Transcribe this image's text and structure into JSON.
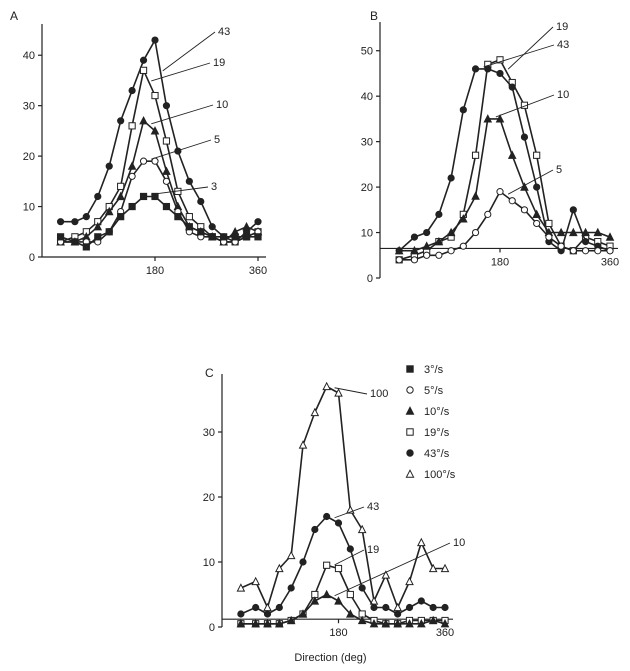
{
  "chart_data": [
    {
      "panel": "A",
      "type": "line",
      "xlim": [
        0,
        360
      ],
      "ylim": [
        0,
        45
      ],
      "xticks": [
        "180",
        "360"
      ],
      "yticks": [
        "0",
        "10",
        "20",
        "30",
        "40"
      ],
      "series": [
        {
          "label": "43",
          "marker": "filled-circle",
          "x": [
            15,
            40,
            60,
            80,
            100,
            120,
            140,
            160,
            180,
            200,
            220,
            240,
            260,
            280,
            300,
            320,
            340,
            360
          ],
          "y": [
            7,
            7,
            8,
            12,
            18,
            27,
            33,
            39,
            43,
            30,
            21,
            15,
            11,
            6,
            4,
            3,
            5,
            7
          ]
        },
        {
          "label": "19",
          "marker": "open-square",
          "x": [
            15,
            40,
            60,
            80,
            100,
            120,
            140,
            160,
            180,
            200,
            220,
            240,
            260,
            280,
            300,
            320,
            340,
            360
          ],
          "y": [
            3,
            4,
            5,
            7,
            10,
            14,
            26,
            37,
            32,
            23,
            13,
            8,
            6,
            4,
            3,
            3,
            4,
            5
          ]
        },
        {
          "label": "10",
          "marker": "filled-triangle",
          "x": [
            15,
            40,
            60,
            80,
            100,
            120,
            140,
            160,
            180,
            200,
            220,
            240,
            260,
            280,
            300,
            320,
            340,
            360
          ],
          "y": [
            3,
            3,
            4,
            6,
            9,
            12,
            18,
            27,
            25,
            17,
            10,
            6,
            5,
            4,
            3,
            5,
            6,
            5
          ]
        },
        {
          "label": "5",
          "marker": "open-circle",
          "x": [
            15,
            40,
            60,
            80,
            100,
            120,
            140,
            160,
            180,
            200,
            220,
            240,
            260,
            280,
            300,
            320,
            340,
            360
          ],
          "y": [
            3,
            3,
            3,
            3,
            5,
            9,
            16,
            19,
            19,
            15,
            9,
            5,
            4,
            4,
            3,
            3,
            4,
            5
          ]
        },
        {
          "label": "3",
          "marker": "filled-square",
          "x": [
            15,
            40,
            60,
            80,
            100,
            120,
            140,
            160,
            180,
            200,
            220,
            240,
            260,
            280,
            300,
            320,
            340,
            360
          ],
          "y": [
            4,
            3,
            2,
            4,
            5,
            8,
            10,
            12,
            12,
            10,
            8,
            6,
            5,
            4,
            4,
            4,
            4,
            4
          ]
        }
      ]
    },
    {
      "panel": "B",
      "type": "line",
      "xlim": [
        0,
        360
      ],
      "ylim": [
        0,
        55
      ],
      "xticks": [
        "180",
        "360"
      ],
      "yticks": [
        "0",
        "10",
        "20",
        "30",
        "40",
        "50"
      ],
      "series": [
        {
          "label": "19",
          "marker": "open-square",
          "x": [
            15,
            40,
            60,
            80,
            100,
            120,
            140,
            160,
            180,
            200,
            220,
            240,
            260,
            280,
            300,
            320,
            340,
            360
          ],
          "y": [
            4,
            5,
            6,
            8,
            9,
            14,
            27,
            47,
            48,
            43,
            38,
            27,
            12,
            7,
            6,
            9,
            8,
            7
          ]
        },
        {
          "label": "43",
          "marker": "filled-circle",
          "x": [
            15,
            40,
            60,
            80,
            100,
            120,
            140,
            160,
            180,
            200,
            220,
            240,
            260,
            280,
            300,
            320,
            340,
            360
          ],
          "y": [
            6,
            9,
            10,
            14,
            22,
            37,
            46,
            46,
            45,
            42,
            31,
            20,
            8,
            6,
            15,
            8,
            7,
            6
          ]
        },
        {
          "label": "10",
          "marker": "filled-triangle",
          "x": [
            15,
            40,
            60,
            80,
            100,
            120,
            140,
            160,
            180,
            200,
            220,
            240,
            260,
            280,
            300,
            320,
            340,
            360
          ],
          "y": [
            6,
            6,
            7,
            8,
            10,
            13,
            18,
            35,
            35,
            27,
            20,
            14,
            10,
            10,
            10,
            10,
            10,
            9
          ]
        },
        {
          "label": "5",
          "marker": "open-circle",
          "x": [
            15,
            40,
            60,
            80,
            100,
            120,
            140,
            160,
            180,
            200,
            220,
            240,
            260,
            280,
            300,
            320,
            340,
            360
          ],
          "y": [
            4,
            4,
            5,
            5,
            6,
            7,
            10,
            14,
            19,
            17,
            15,
            12,
            9,
            7,
            6,
            6,
            6,
            6
          ]
        }
      ]
    },
    {
      "panel": "C",
      "type": "line",
      "xlim": [
        0,
        360
      ],
      "ylim": [
        0,
        38
      ],
      "xticks": [
        "180",
        "360"
      ],
      "yticks": [
        "0",
        "10",
        "20",
        "30"
      ],
      "xlabel": "Direction (deg)",
      "legend": [
        {
          "marker": "filled-square",
          "label": "3°/s"
        },
        {
          "marker": "open-circle",
          "label": "5°/s"
        },
        {
          "marker": "filled-triangle",
          "label": "10°/s"
        },
        {
          "marker": "open-square",
          "label": "19°/s"
        },
        {
          "marker": "filled-circle",
          "label": "43°/s"
        },
        {
          "marker": "open-triangle",
          "label": "100°/s"
        }
      ],
      "series": [
        {
          "label": "100",
          "marker": "open-triangle",
          "x": [
            15,
            40,
            60,
            80,
            100,
            120,
            140,
            160,
            180,
            200,
            220,
            240,
            260,
            280,
            300,
            320,
            340,
            360
          ],
          "y": [
            6,
            7,
            3,
            9,
            11,
            28,
            33,
            37,
            36,
            18,
            15,
            4,
            8,
            3,
            7,
            13,
            9,
            9
          ]
        },
        {
          "label": "43",
          "marker": "filled-circle",
          "x": [
            15,
            40,
            60,
            80,
            100,
            120,
            140,
            160,
            180,
            200,
            220,
            240,
            260,
            280,
            300,
            320,
            340,
            360
          ],
          "y": [
            2,
            3,
            2,
            3,
            6,
            10,
            15,
            17,
            16,
            12,
            6,
            3,
            3,
            2,
            3,
            4,
            3,
            3
          ]
        },
        {
          "label": "19",
          "marker": "open-square",
          "x": [
            15,
            40,
            60,
            80,
            100,
            120,
            140,
            160,
            180,
            200,
            220,
            240,
            260,
            280,
            300,
            320,
            340,
            360
          ],
          "y": [
            0.5,
            0.5,
            0.5,
            0.5,
            1,
            2,
            5,
            9.5,
            9,
            5,
            2,
            1,
            0.5,
            0.5,
            1,
            1,
            1,
            1
          ]
        },
        {
          "label": "10",
          "marker": "filled-triangle",
          "x": [
            15,
            40,
            60,
            80,
            100,
            120,
            140,
            160,
            180,
            200,
            220,
            240,
            260,
            280,
            300,
            320,
            340,
            360
          ],
          "y": [
            0.5,
            0.5,
            0.5,
            0.5,
            1,
            2,
            4,
            5,
            4,
            2,
            1,
            0.5,
            0.5,
            0.5,
            0.5,
            0.5,
            1,
            0.5
          ]
        }
      ]
    }
  ]
}
